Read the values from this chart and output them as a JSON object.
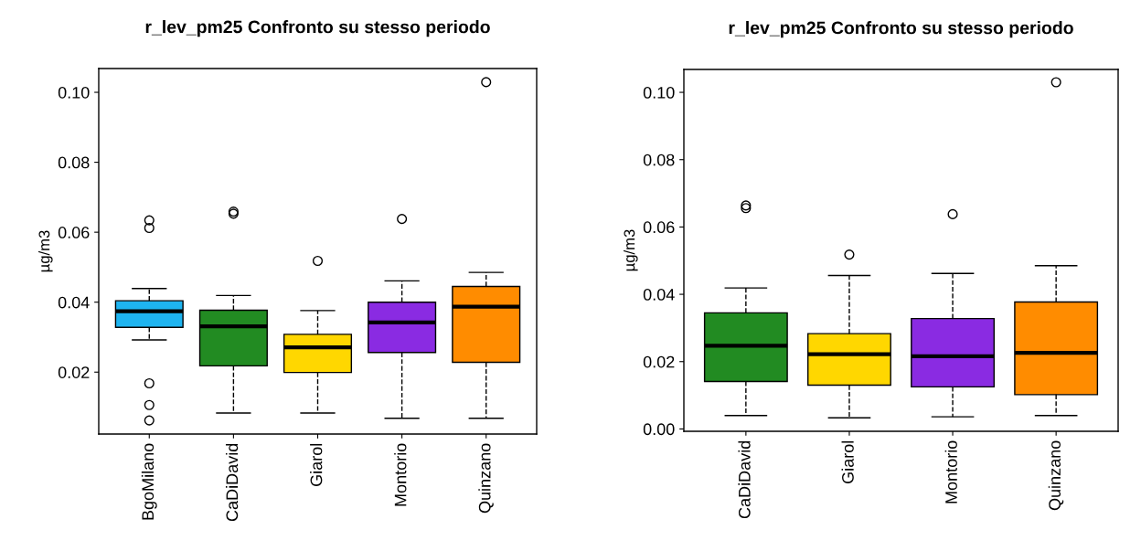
{
  "chart_data": [
    {
      "type": "box",
      "title": "r_lev_pm25 Confronto su stesso periodo",
      "ylabel": "µg/m3",
      "categories": [
        "BgoMilano",
        "CaDiDavid",
        "Giarol",
        "Montorio",
        "Quinzano"
      ],
      "colors": [
        "#1eb4f0",
        "#228b22",
        "#ffd700",
        "#8a2be2",
        "#ff8c00"
      ],
      "boxes": [
        {
          "low": 0.0292,
          "q1": 0.0328,
          "median": 0.0374,
          "q3": 0.0404,
          "high": 0.0439,
          "outliers": [
            0.0634,
            0.0612,
            0.0168,
            0.0106,
            0.0062
          ]
        },
        {
          "low": 0.0083,
          "q1": 0.0218,
          "median": 0.0331,
          "q3": 0.0377,
          "high": 0.0419,
          "outliers": [
            0.0659,
            0.0653
          ]
        },
        {
          "low": 0.0083,
          "q1": 0.0199,
          "median": 0.0271,
          "q3": 0.0308,
          "high": 0.0376,
          "outliers": [
            0.0518
          ]
        },
        {
          "low": 0.0068,
          "q1": 0.0256,
          "median": 0.0342,
          "q3": 0.04,
          "high": 0.0461,
          "outliers": [
            0.0638
          ]
        },
        {
          "low": 0.0068,
          "q1": 0.0228,
          "median": 0.0387,
          "q3": 0.0445,
          "high": 0.0485,
          "outliers": [
            0.1029
          ]
        }
      ],
      "ylim": [
        0.0023,
        0.1068
      ],
      "yticks": [
        {
          "value": 0.02,
          "label": "0.02"
        },
        {
          "value": 0.04,
          "label": "0.04"
        },
        {
          "value": 0.06,
          "label": "0.06"
        },
        {
          "value": 0.08,
          "label": "0.08"
        },
        {
          "value": 0.1,
          "label": "0.10"
        }
      ],
      "grid": false,
      "line_style": "dashed",
      "marker": "circle"
    },
    {
      "type": "box",
      "title": "r_lev_pm25 Confronto su stesso periodo",
      "ylabel": "µg/m3",
      "categories": [
        "CaDiDavid",
        "Giarol",
        "Montorio",
        "Quinzano"
      ],
      "colors": [
        "#228b22",
        "#ffd700",
        "#8a2be2",
        "#ff8c00"
      ],
      "boxes": [
        {
          "low": 0.004,
          "q1": 0.0141,
          "median": 0.0247,
          "q3": 0.0345,
          "high": 0.0419,
          "outliers": [
            0.0664,
            0.0656
          ]
        },
        {
          "low": 0.0033,
          "q1": 0.013,
          "median": 0.0222,
          "q3": 0.0283,
          "high": 0.0456,
          "outliers": [
            0.0518
          ]
        },
        {
          "low": 0.0036,
          "q1": 0.0125,
          "median": 0.0216,
          "q3": 0.0328,
          "high": 0.0462,
          "outliers": [
            0.0638
          ]
        },
        {
          "low": 0.004,
          "q1": 0.0102,
          "median": 0.0226,
          "q3": 0.0377,
          "high": 0.0485,
          "outliers": [
            0.103
          ]
        }
      ],
      "ylim": [
        -0.0007,
        0.1068
      ],
      "yticks": [
        {
          "value": 0.0,
          "label": "0.00"
        },
        {
          "value": 0.02,
          "label": "0.02"
        },
        {
          "value": 0.04,
          "label": "0.04"
        },
        {
          "value": 0.06,
          "label": "0.06"
        },
        {
          "value": 0.08,
          "label": "0.08"
        },
        {
          "value": 0.1,
          "label": "0.10"
        }
      ],
      "grid": false,
      "line_style": "dashed",
      "marker": "circle"
    }
  ]
}
